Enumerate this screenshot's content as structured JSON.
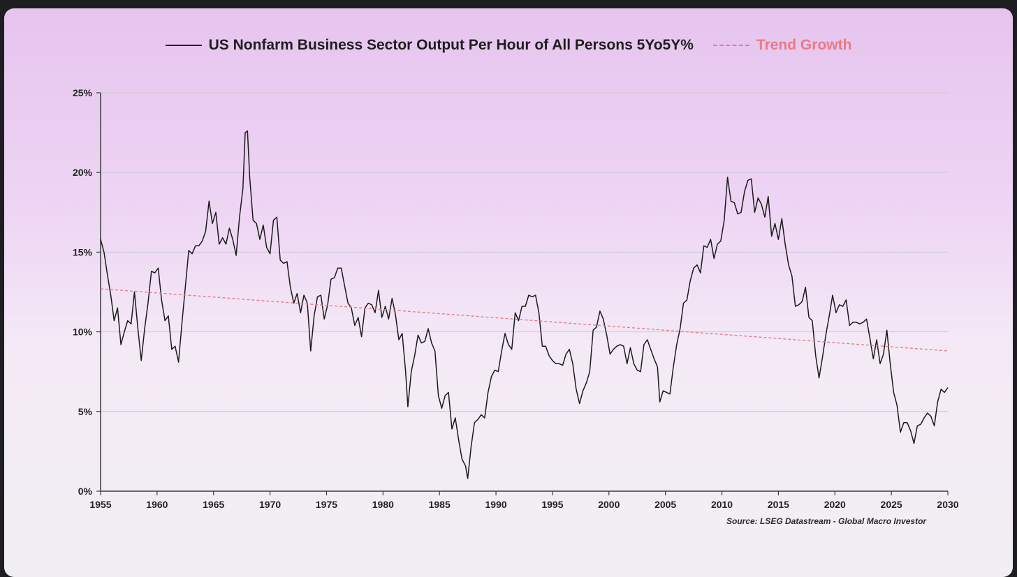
{
  "legend": {
    "series_label": "US Nonfarm Business Sector Output Per Hour of All Persons 5Yo5Y%",
    "trend_label": "Trend Growth"
  },
  "source": "Source: LSEG Datastream - Global Macro Investor",
  "colors": {
    "series": "#1b1b1b",
    "trend": "#e87d86",
    "grid": "#cfc6d6",
    "axis": "#3a3a3a"
  },
  "chart_data": {
    "type": "line",
    "title": "",
    "xlabel": "",
    "ylabel": "",
    "xlim": [
      1955,
      2030
    ],
    "ylim": [
      0,
      25
    ],
    "x_ticks": [
      1955,
      1960,
      1965,
      1970,
      1975,
      1980,
      1985,
      1990,
      1995,
      2000,
      2005,
      2010,
      2015,
      2020,
      2025,
      2030
    ],
    "y_ticks": [
      0,
      5,
      10,
      15,
      20,
      25
    ],
    "y_tick_labels": [
      "0%",
      "5%",
      "10%",
      "15%",
      "20%",
      "25%"
    ],
    "grid": "horizontal",
    "legend_position": "top",
    "series": [
      {
        "name": "US Nonfarm Business Sector Output Per Hour of All Persons 5Yo5Y%",
        "style": "solid",
        "points": [
          [
            1955.0,
            15.8
          ],
          [
            1955.3,
            15.0
          ],
          [
            1955.6,
            13.6
          ],
          [
            1955.9,
            12.3
          ],
          [
            1956.2,
            10.7
          ],
          [
            1956.5,
            11.5
          ],
          [
            1956.8,
            9.2
          ],
          [
            1957.1,
            10.0
          ],
          [
            1957.4,
            10.7
          ],
          [
            1957.7,
            10.5
          ],
          [
            1958.0,
            12.5
          ],
          [
            1958.3,
            10.2
          ],
          [
            1958.6,
            8.2
          ],
          [
            1958.9,
            10.2
          ],
          [
            1959.2,
            11.8
          ],
          [
            1959.5,
            13.8
          ],
          [
            1959.8,
            13.7
          ],
          [
            1960.1,
            14.0
          ],
          [
            1960.4,
            12.0
          ],
          [
            1960.7,
            10.7
          ],
          [
            1961.0,
            11.0
          ],
          [
            1961.3,
            8.9
          ],
          [
            1961.6,
            9.1
          ],
          [
            1961.9,
            8.1
          ],
          [
            1962.2,
            10.5
          ],
          [
            1962.5,
            12.8
          ],
          [
            1962.8,
            15.1
          ],
          [
            1963.1,
            14.9
          ],
          [
            1963.4,
            15.4
          ],
          [
            1963.7,
            15.4
          ],
          [
            1964.0,
            15.7
          ],
          [
            1964.3,
            16.3
          ],
          [
            1964.6,
            18.2
          ],
          [
            1964.9,
            16.8
          ],
          [
            1965.2,
            17.5
          ],
          [
            1965.5,
            15.5
          ],
          [
            1965.8,
            15.9
          ],
          [
            1966.1,
            15.5
          ],
          [
            1966.4,
            16.5
          ],
          [
            1966.7,
            15.8
          ],
          [
            1967.0,
            14.8
          ],
          [
            1967.3,
            17.2
          ],
          [
            1967.6,
            19.0
          ],
          [
            1967.8,
            22.5
          ],
          [
            1968.0,
            22.6
          ],
          [
            1968.2,
            19.7
          ],
          [
            1968.5,
            17.0
          ],
          [
            1968.8,
            16.8
          ],
          [
            1969.1,
            15.8
          ],
          [
            1969.4,
            16.7
          ],
          [
            1969.7,
            15.3
          ],
          [
            1970.0,
            14.9
          ],
          [
            1970.3,
            17.0
          ],
          [
            1970.6,
            17.2
          ],
          [
            1970.9,
            14.5
          ],
          [
            1971.2,
            14.3
          ],
          [
            1971.5,
            14.4
          ],
          [
            1971.8,
            12.8
          ],
          [
            1972.1,
            11.8
          ],
          [
            1972.4,
            12.4
          ],
          [
            1972.7,
            11.2
          ],
          [
            1973.0,
            12.3
          ],
          [
            1973.3,
            11.8
          ],
          [
            1973.6,
            8.8
          ],
          [
            1973.9,
            11.0
          ],
          [
            1974.2,
            12.2
          ],
          [
            1974.5,
            12.3
          ],
          [
            1974.8,
            10.8
          ],
          [
            1975.1,
            11.7
          ],
          [
            1975.4,
            13.3
          ],
          [
            1975.7,
            13.4
          ],
          [
            1976.0,
            14.0
          ],
          [
            1976.3,
            14.0
          ],
          [
            1976.6,
            12.9
          ],
          [
            1976.9,
            11.8
          ],
          [
            1977.2,
            11.5
          ],
          [
            1977.5,
            10.4
          ],
          [
            1977.8,
            10.9
          ],
          [
            1978.1,
            9.7
          ],
          [
            1978.4,
            11.5
          ],
          [
            1978.7,
            11.8
          ],
          [
            1979.0,
            11.7
          ],
          [
            1979.3,
            11.2
          ],
          [
            1979.6,
            12.6
          ],
          [
            1979.9,
            10.9
          ],
          [
            1980.2,
            11.6
          ],
          [
            1980.5,
            10.8
          ],
          [
            1980.8,
            12.1
          ],
          [
            1981.1,
            11.1
          ],
          [
            1981.4,
            9.5
          ],
          [
            1981.7,
            9.9
          ],
          [
            1982.0,
            7.5
          ],
          [
            1982.2,
            5.3
          ],
          [
            1982.5,
            7.5
          ],
          [
            1982.8,
            8.5
          ],
          [
            1983.1,
            9.8
          ],
          [
            1983.4,
            9.3
          ],
          [
            1983.7,
            9.4
          ],
          [
            1984.0,
            10.2
          ],
          [
            1984.3,
            9.3
          ],
          [
            1984.6,
            8.8
          ],
          [
            1984.9,
            6.0
          ],
          [
            1985.2,
            5.2
          ],
          [
            1985.5,
            6.0
          ],
          [
            1985.8,
            6.2
          ],
          [
            1986.1,
            3.9
          ],
          [
            1986.4,
            4.6
          ],
          [
            1986.7,
            3.2
          ],
          [
            1987.0,
            2.0
          ],
          [
            1987.3,
            1.6
          ],
          [
            1987.5,
            0.8
          ],
          [
            1987.8,
            2.8
          ],
          [
            1988.1,
            4.3
          ],
          [
            1988.4,
            4.5
          ],
          [
            1988.7,
            4.8
          ],
          [
            1989.0,
            4.6
          ],
          [
            1989.3,
            6.2
          ],
          [
            1989.6,
            7.2
          ],
          [
            1989.9,
            7.6
          ],
          [
            1990.2,
            7.5
          ],
          [
            1990.5,
            8.8
          ],
          [
            1990.8,
            9.9
          ],
          [
            1991.1,
            9.2
          ],
          [
            1991.4,
            8.9
          ],
          [
            1991.7,
            11.2
          ],
          [
            1992.0,
            10.7
          ],
          [
            1992.3,
            11.6
          ],
          [
            1992.6,
            11.6
          ],
          [
            1992.9,
            12.3
          ],
          [
            1993.2,
            12.2
          ],
          [
            1993.5,
            12.3
          ],
          [
            1993.8,
            11.2
          ],
          [
            1994.1,
            9.1
          ],
          [
            1994.4,
            9.1
          ],
          [
            1994.7,
            8.5
          ],
          [
            1995.0,
            8.2
          ],
          [
            1995.3,
            8.0
          ],
          [
            1995.6,
            8.0
          ],
          [
            1995.9,
            7.9
          ],
          [
            1996.2,
            8.6
          ],
          [
            1996.5,
            8.9
          ],
          [
            1996.8,
            8.0
          ],
          [
            1997.1,
            6.4
          ],
          [
            1997.4,
            5.5
          ],
          [
            1997.7,
            6.3
          ],
          [
            1998.0,
            6.8
          ],
          [
            1998.3,
            7.5
          ],
          [
            1998.6,
            10.1
          ],
          [
            1998.9,
            10.3
          ],
          [
            1999.2,
            11.3
          ],
          [
            1999.5,
            10.8
          ],
          [
            1999.8,
            9.8
          ],
          [
            2000.1,
            8.6
          ],
          [
            2000.4,
            8.9
          ],
          [
            2000.7,
            9.1
          ],
          [
            2001.0,
            9.2
          ],
          [
            2001.3,
            9.1
          ],
          [
            2001.6,
            8.0
          ],
          [
            2001.9,
            9.0
          ],
          [
            2002.2,
            8.0
          ],
          [
            2002.5,
            7.6
          ],
          [
            2002.8,
            7.5
          ],
          [
            2003.1,
            9.2
          ],
          [
            2003.4,
            9.5
          ],
          [
            2003.7,
            8.9
          ],
          [
            2004.0,
            8.3
          ],
          [
            2004.3,
            7.8
          ],
          [
            2004.5,
            5.6
          ],
          [
            2004.8,
            6.3
          ],
          [
            2005.1,
            6.2
          ],
          [
            2005.4,
            6.1
          ],
          [
            2005.7,
            7.8
          ],
          [
            2006.0,
            9.2
          ],
          [
            2006.3,
            10.2
          ],
          [
            2006.6,
            11.8
          ],
          [
            2006.9,
            12.0
          ],
          [
            2007.2,
            13.2
          ],
          [
            2007.5,
            14.0
          ],
          [
            2007.8,
            14.2
          ],
          [
            2008.1,
            13.7
          ],
          [
            2008.4,
            15.4
          ],
          [
            2008.7,
            15.3
          ],
          [
            2009.0,
            15.8
          ],
          [
            2009.3,
            14.6
          ],
          [
            2009.6,
            15.5
          ],
          [
            2009.9,
            15.7
          ],
          [
            2010.2,
            17.0
          ],
          [
            2010.5,
            19.7
          ],
          [
            2010.8,
            18.2
          ],
          [
            2011.1,
            18.1
          ],
          [
            2011.4,
            17.4
          ],
          [
            2011.7,
            17.5
          ],
          [
            2012.0,
            18.8
          ],
          [
            2012.3,
            19.5
          ],
          [
            2012.6,
            19.6
          ],
          [
            2012.9,
            17.5
          ],
          [
            2013.2,
            18.4
          ],
          [
            2013.5,
            18.0
          ],
          [
            2013.8,
            17.2
          ],
          [
            2014.1,
            18.5
          ],
          [
            2014.4,
            16.0
          ],
          [
            2014.7,
            16.8
          ],
          [
            2015.0,
            15.8
          ],
          [
            2015.3,
            17.1
          ],
          [
            2015.6,
            15.5
          ],
          [
            2015.9,
            14.2
          ],
          [
            2016.2,
            13.5
          ],
          [
            2016.5,
            11.6
          ],
          [
            2016.8,
            11.7
          ],
          [
            2017.1,
            11.9
          ],
          [
            2017.4,
            12.8
          ],
          [
            2017.7,
            10.9
          ],
          [
            2018.0,
            10.7
          ],
          [
            2018.3,
            8.5
          ],
          [
            2018.6,
            7.1
          ],
          [
            2018.9,
            8.4
          ],
          [
            2019.2,
            9.8
          ],
          [
            2019.5,
            11.0
          ],
          [
            2019.8,
            12.3
          ],
          [
            2020.1,
            11.2
          ],
          [
            2020.4,
            11.7
          ],
          [
            2020.7,
            11.6
          ],
          [
            2021.0,
            12.0
          ],
          [
            2021.3,
            10.4
          ],
          [
            2021.6,
            10.6
          ],
          [
            2021.9,
            10.6
          ],
          [
            2022.2,
            10.5
          ],
          [
            2022.5,
            10.6
          ],
          [
            2022.8,
            10.8
          ],
          [
            2023.1,
            9.6
          ],
          [
            2023.4,
            8.3
          ],
          [
            2023.7,
            9.5
          ],
          [
            2024.0,
            8.0
          ],
          [
            2024.3,
            8.6
          ],
          [
            2024.6,
            10.1
          ],
          [
            2024.9,
            8.0
          ],
          [
            2025.2,
            6.2
          ],
          [
            2025.5,
            5.4
          ],
          [
            2025.8,
            3.7
          ],
          [
            2026.1,
            4.3
          ],
          [
            2026.4,
            4.3
          ],
          [
            2026.7,
            3.8
          ],
          [
            2027.0,
            3.0
          ],
          [
            2027.3,
            4.1
          ],
          [
            2027.6,
            4.2
          ],
          [
            2027.9,
            4.6
          ],
          [
            2028.2,
            4.9
          ],
          [
            2028.5,
            4.7
          ],
          [
            2028.8,
            4.1
          ],
          [
            2029.1,
            5.6
          ],
          [
            2029.4,
            6.4
          ],
          [
            2029.7,
            6.2
          ],
          [
            2030.0,
            6.5
          ]
        ]
      },
      {
        "name": "Trend Growth",
        "style": "dashed",
        "points": [
          [
            1955,
            12.7
          ],
          [
            2030,
            8.8
          ]
        ]
      }
    ]
  }
}
